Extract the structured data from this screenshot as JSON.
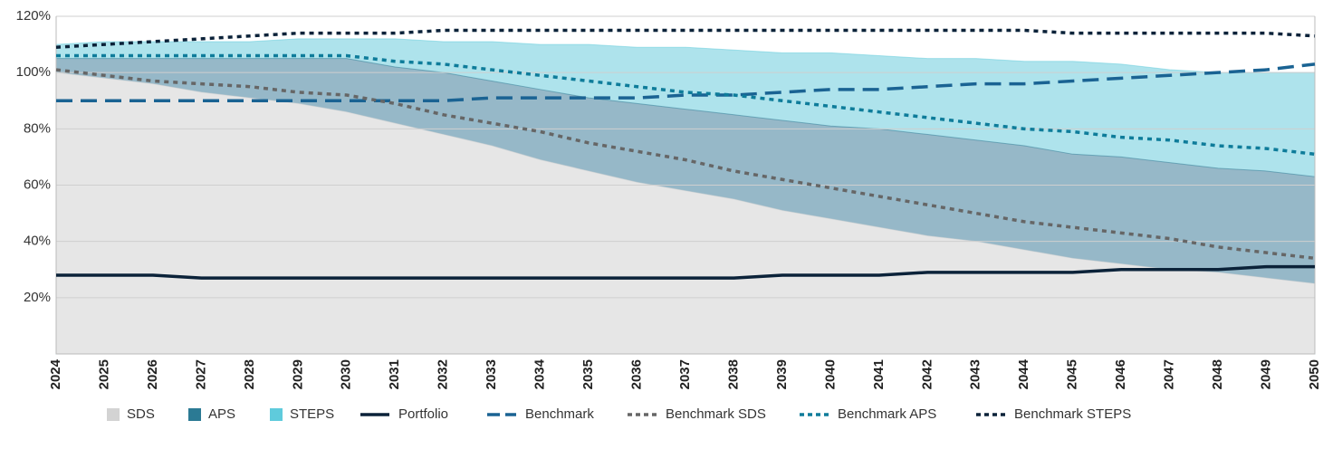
{
  "chart_data": {
    "type": "area-line",
    "categories": [
      "2024",
      "2025",
      "2026",
      "2027",
      "2028",
      "2029",
      "2030",
      "2031",
      "2032",
      "2033",
      "2034",
      "2035",
      "2036",
      "2037",
      "2038",
      "2039",
      "2040",
      "2041",
      "2042",
      "2043",
      "2044",
      "2045",
      "2046",
      "2047",
      "2048",
      "2049",
      "2050"
    ],
    "series": [
      {
        "name": "SDS",
        "kind": "area",
        "color": "#e6e6e6",
        "legend_color": "#d3d3d3",
        "values": [
          100,
          98,
          96,
          93,
          91,
          89,
          86,
          82,
          78,
          74,
          69,
          65,
          61,
          58,
          55,
          51,
          48,
          45,
          42,
          40,
          37,
          34,
          32,
          30,
          29,
          27,
          25
        ]
      },
      {
        "name": "APS",
        "kind": "area",
        "color": "#96b8c8",
        "legend_color": "#2b7a94",
        "values": [
          105,
          105,
          105,
          105,
          105,
          105,
          105,
          102,
          100,
          97,
          94,
          91,
          89,
          87,
          85,
          83,
          81,
          80,
          78,
          76,
          74,
          71,
          70,
          68,
          66,
          65,
          63
        ]
      },
      {
        "name": "STEPS",
        "kind": "area",
        "color": "#aee3ec",
        "legend_color": "#5fcbdc",
        "values": [
          110,
          111,
          111,
          111,
          111,
          112,
          112,
          112,
          111,
          111,
          110,
          110,
          109,
          109,
          108,
          107,
          107,
          106,
          105,
          105,
          104,
          104,
          103,
          101,
          100,
          100,
          100
        ]
      },
      {
        "name": "Portfolio",
        "kind": "line",
        "style": "solid",
        "color": "#0b2239",
        "values": [
          28,
          28,
          28,
          27,
          27,
          27,
          27,
          27,
          27,
          27,
          27,
          27,
          27,
          27,
          27,
          28,
          28,
          28,
          29,
          29,
          29,
          29,
          30,
          30,
          30,
          31,
          31
        ]
      },
      {
        "name": "Benchmark",
        "kind": "line",
        "style": "dashed",
        "color": "#1a6393",
        "values": [
          90,
          90,
          90,
          90,
          90,
          90,
          90,
          90,
          90,
          91,
          91,
          91,
          91,
          92,
          92,
          93,
          94,
          94,
          95,
          96,
          96,
          97,
          98,
          99,
          100,
          101,
          103
        ]
      },
      {
        "name": "Benchmark SDS",
        "kind": "line",
        "style": "dotted",
        "color": "#666666",
        "values": [
          101,
          99,
          97,
          96,
          95,
          93,
          92,
          89,
          85,
          82,
          79,
          75,
          72,
          69,
          65,
          62,
          59,
          56,
          53,
          50,
          47,
          45,
          43,
          41,
          38,
          36,
          34
        ]
      },
      {
        "name": "Benchmark APS",
        "kind": "line",
        "style": "dotted",
        "color": "#0e7c9a",
        "values": [
          106,
          106,
          106,
          106,
          106,
          106,
          106,
          104,
          103,
          101,
          99,
          97,
          95,
          93,
          92,
          90,
          88,
          86,
          84,
          82,
          80,
          79,
          77,
          76,
          74,
          73,
          71
        ]
      },
      {
        "name": "Benchmark STEPS",
        "kind": "line",
        "style": "dotted",
        "color": "#0b2239",
        "values": [
          109,
          110,
          111,
          112,
          113,
          114,
          114,
          114,
          115,
          115,
          115,
          115,
          115,
          115,
          115,
          115,
          115,
          115,
          115,
          115,
          115,
          114,
          114,
          114,
          114,
          114,
          113
        ]
      }
    ],
    "ylim": [
      0,
      120
    ],
    "yticks": [
      {
        "value": 20,
        "label": "20%"
      },
      {
        "value": 40,
        "label": "40%"
      },
      {
        "value": 60,
        "label": "60%"
      },
      {
        "value": 80,
        "label": "80%"
      },
      {
        "value": 100,
        "label": "100%"
      },
      {
        "value": 120,
        "label": "120%"
      }
    ],
    "grid": true,
    "legend": "bottom"
  }
}
